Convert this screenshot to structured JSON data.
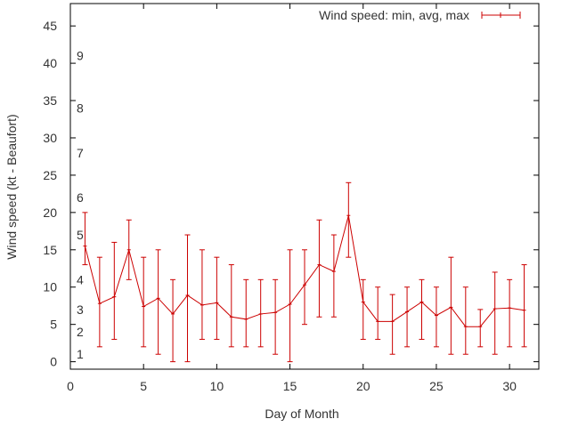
{
  "chart_data": {
    "type": "line",
    "title": "",
    "xlabel": "Day of Month",
    "ylabel": "Wind speed (kt - Beaufort)",
    "xlim": [
      0,
      32
    ],
    "ylim": [
      -1,
      48
    ],
    "xticks": [
      0,
      5,
      10,
      15,
      20,
      25,
      30
    ],
    "yticks": [
      0,
      5,
      10,
      15,
      20,
      25,
      30,
      35,
      40,
      45
    ],
    "legend": {
      "label": "Wind speed: min, avg, max",
      "placement": "top-right"
    },
    "series_color": "#cc0000",
    "beaufort_labels": [
      {
        "label": "1",
        "kt": 1
      },
      {
        "label": "2",
        "kt": 4
      },
      {
        "label": "3",
        "kt": 7
      },
      {
        "label": "4",
        "kt": 11
      },
      {
        "label": "5",
        "kt": 17
      },
      {
        "label": "6",
        "kt": 22
      },
      {
        "label": "7",
        "kt": 28
      },
      {
        "label": "8",
        "kt": 34
      },
      {
        "label": "9",
        "kt": 41
      }
    ],
    "series": [
      {
        "name": "Wind speed: min, avg, max",
        "x": [
          1,
          2,
          3,
          4,
          5,
          6,
          7,
          8,
          9,
          10,
          11,
          12,
          13,
          14,
          15,
          16,
          17,
          18,
          19,
          20,
          21,
          22,
          23,
          24,
          25,
          26,
          27,
          28,
          29,
          30,
          31
        ],
        "avg": [
          15.5,
          7.8,
          8.7,
          15,
          7.4,
          8.5,
          6.4,
          8.9,
          7.6,
          7.9,
          6,
          5.7,
          6.4,
          6.6,
          7.7,
          10.3,
          13,
          12.1,
          19.6,
          8,
          5.4,
          5.4,
          6.7,
          8,
          6.2,
          7.3,
          4.7,
          4.7,
          7.1,
          7.2,
          6.9
        ],
        "min": [
          13,
          2,
          3,
          11,
          2,
          1,
          0,
          0,
          3,
          3,
          2,
          2,
          2,
          1,
          0,
          5,
          6,
          6,
          14,
          3,
          3,
          1,
          2,
          3,
          2,
          1,
          1,
          2,
          1,
          2,
          2
        ],
        "max": [
          20,
          14,
          16,
          19,
          14,
          15,
          11,
          17,
          15,
          14,
          13,
          11,
          11,
          11,
          15,
          15,
          19,
          17,
          24,
          11,
          10,
          9,
          10,
          11,
          10,
          14,
          10,
          7,
          12,
          11,
          13
        ]
      }
    ]
  }
}
